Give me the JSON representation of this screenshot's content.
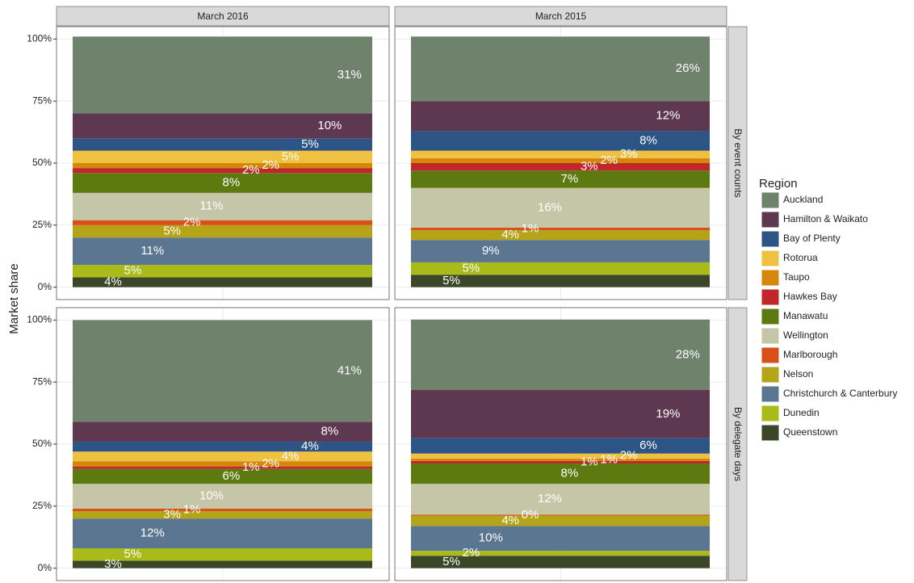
{
  "chart_data": {
    "type": "bar",
    "stacked": true,
    "y_label": "Market share",
    "legend_title": "Region",
    "columns": [
      "March 2016",
      "March 2015"
    ],
    "rows": [
      "By event counts",
      "By delegate days"
    ],
    "ylim": [
      -5,
      105
    ],
    "yticks": [
      {
        "value": 0,
        "label": "0%"
      },
      {
        "value": 25,
        "label": "25%"
      },
      {
        "value": 50,
        "label": "50%"
      },
      {
        "value": 75,
        "label": "75%"
      },
      {
        "value": 100,
        "label": "100%"
      }
    ],
    "grid": true,
    "legend": "right",
    "series": [
      {
        "name": "Auckland",
        "color": "#6e826c",
        "values": [
          31,
          26,
          41,
          28.4
        ],
        "value_labels": [
          "31%",
          "26%",
          "41%",
          "28%"
        ]
      },
      {
        "name": "Hamilton & Waikato",
        "color": "#5e3750",
        "values": [
          10,
          12,
          8,
          19.4
        ],
        "value_labels": [
          "10%",
          "12%",
          "8%",
          "19%"
        ]
      },
      {
        "name": "Bay of Plenty",
        "color": "#2c5585",
        "values": [
          5,
          8,
          4,
          6.2
        ],
        "value_labels": [
          "5%",
          "8%",
          "4%",
          "6%"
        ]
      },
      {
        "name": "Rotorua",
        "color": "#f0c040",
        "values": [
          5,
          3,
          4,
          2
        ],
        "value_labels": [
          "5%",
          "3%",
          "4%",
          "2%"
        ]
      },
      {
        "name": "Taupo",
        "color": "#d4870a",
        "values": [
          2,
          2,
          2,
          1
        ],
        "value_labels": [
          "2%",
          "2%",
          "2%",
          "1%"
        ]
      },
      {
        "name": "Hawkes Bay",
        "color": "#c0262a",
        "values": [
          2,
          3,
          1,
          1
        ],
        "value_labels": [
          "2%",
          "3%",
          "1%",
          "1%"
        ]
      },
      {
        "name": "Manawatu",
        "color": "#5c7a10",
        "values": [
          8,
          7,
          6,
          8.2
        ],
        "value_labels": [
          "8%",
          "7%",
          "6%",
          "8%"
        ]
      },
      {
        "name": "Wellington",
        "color": "#c5c5a8",
        "values": [
          11,
          16,
          10,
          12.4
        ],
        "value_labels": [
          "11%",
          "16%",
          "10%",
          "12%"
        ]
      },
      {
        "name": "Marlborough",
        "color": "#d94f18",
        "values": [
          2,
          1,
          1,
          0.4
        ],
        "value_labels": [
          "2%",
          "1%",
          "1%",
          "0%"
        ]
      },
      {
        "name": "Nelson",
        "color": "#b5a318",
        "values": [
          5,
          4,
          3,
          4.2
        ],
        "value_labels": [
          "5%",
          "4%",
          "3%",
          "4%"
        ]
      },
      {
        "name": "Christchurch & Canterbury",
        "color": "#5b7690",
        "values": [
          11,
          9,
          12,
          10
        ],
        "value_labels": [
          "11%",
          "9%",
          "12%",
          "10%"
        ]
      },
      {
        "name": "Dunedin",
        "color": "#a9bb19",
        "values": [
          5,
          5,
          5,
          2
        ],
        "value_labels": [
          "5%",
          "5%",
          "5%",
          "2%"
        ]
      },
      {
        "name": "Queenstown",
        "color": "#3b4728",
        "values": [
          4,
          5,
          3,
          5
        ],
        "value_labels": [
          "4%",
          "5%",
          "3%",
          "5%"
        ]
      }
    ]
  }
}
